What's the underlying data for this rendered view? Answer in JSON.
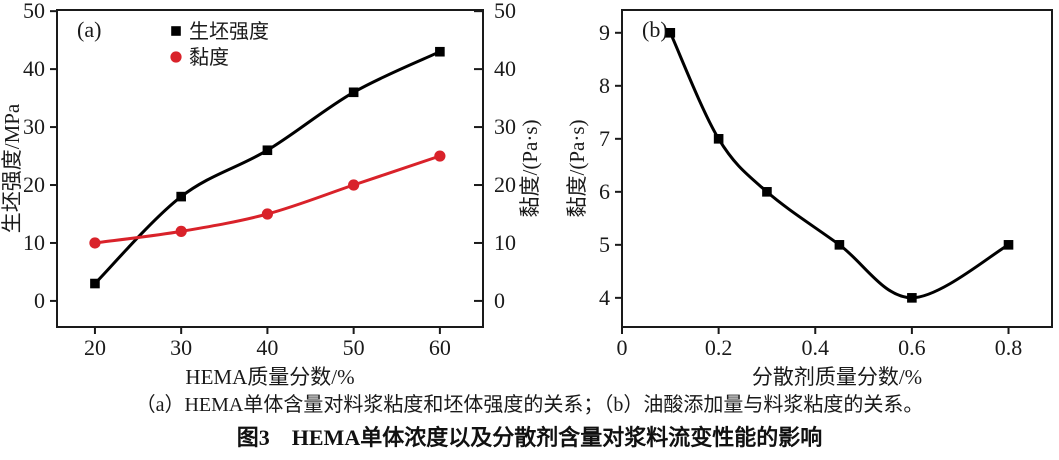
{
  "caption": "（a）HEMA单体含量对料浆粘度和坯体强度的关系；（b）油酸添加量与料浆粘度的关系。",
  "figure_title": "图3　HEMA单体浓度以及分散剂含量对浆料流变性能的影响",
  "colors": {
    "axis": "#1a1a1a",
    "series_black": "#000000",
    "series_red": "#d9222a"
  },
  "chart_data": [
    {
      "type": "line",
      "panel": "(a)",
      "xlabel": "HEMA质量分数/%",
      "ylabel": "生坯强度/MPa",
      "ylabel_right": "黏度/(Pa·s)",
      "xlim": [
        15.6,
        65.0
      ],
      "ylim": [
        -4.5,
        50.2
      ],
      "grid": false,
      "legend_position": "upper-left-inside",
      "xticks": {
        "values": [
          20,
          30,
          40,
          50,
          60
        ],
        "labels": [
          "20",
          "30",
          "40",
          "50",
          "60"
        ]
      },
      "yticks": {
        "values": [
          0,
          10,
          20,
          30,
          40,
          50
        ],
        "labels": [
          "0",
          "10",
          "20",
          "30",
          "40",
          "50"
        ]
      },
      "yticks_right": {
        "values": [
          0,
          10,
          20,
          30,
          40,
          50
        ],
        "labels": [
          "0",
          "10",
          "20",
          "30",
          "40",
          "50"
        ]
      },
      "legend": [
        {
          "label": "生坯强度",
          "marker": "square",
          "color": "#000000"
        },
        {
          "label": "黏度",
          "marker": "circle",
          "color": "#d9222a"
        }
      ],
      "series": [
        {
          "name": "生坯强度",
          "marker": "square",
          "color": "#000000",
          "x": [
            20,
            30,
            40,
            50,
            60
          ],
          "y": [
            3,
            18,
            26,
            36,
            43
          ]
        },
        {
          "name": "黏度",
          "marker": "circle",
          "color": "#d9222a",
          "x": [
            20,
            30,
            40,
            50,
            60
          ],
          "y": [
            10,
            12,
            15,
            20,
            25
          ]
        }
      ]
    },
    {
      "type": "line",
      "panel": "(b)",
      "xlabel": "分散剂质量分数/%",
      "ylabel": "黏度/(Pa·s)",
      "xlim": [
        0,
        0.89
      ],
      "ylim": [
        3.45,
        9.43
      ],
      "grid": false,
      "xticks": {
        "values": [
          0,
          0.2,
          0.4,
          0.6,
          0.8
        ],
        "labels": [
          "0",
          "0.2",
          "0.4",
          "0.6",
          "0.8"
        ]
      },
      "yticks": {
        "values": [
          4,
          5,
          6,
          7,
          8,
          9
        ],
        "labels": [
          "4",
          "5",
          "6",
          "7",
          "8",
          "9"
        ]
      },
      "series": [
        {
          "name": "黏度",
          "marker": "square",
          "color": "#000000",
          "x": [
            0.1,
            0.2,
            0.3,
            0.45,
            0.6,
            0.8
          ],
          "y": [
            9,
            7,
            6,
            5,
            4,
            5
          ]
        }
      ]
    }
  ]
}
